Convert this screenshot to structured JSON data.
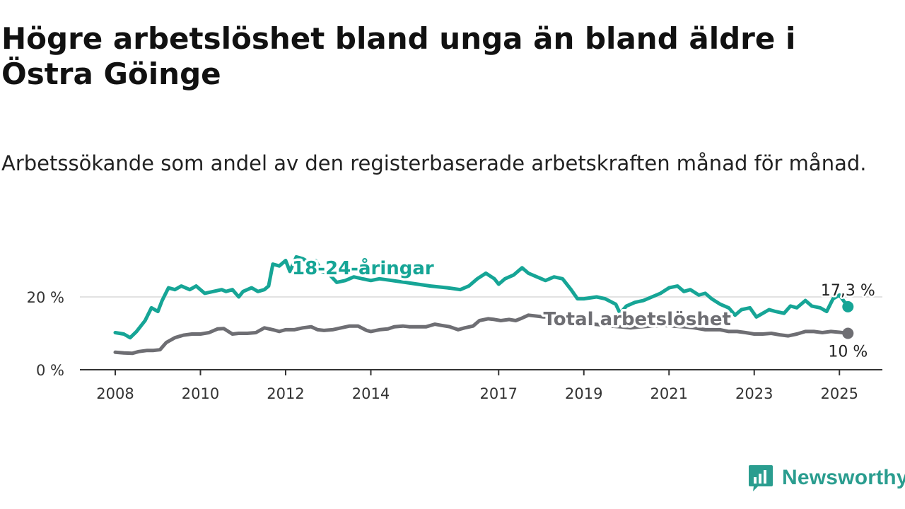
{
  "title": "Högre arbetslöshet bland unga än bland äldre i Östra Göinge",
  "subtitle": "Arbetssökande som andel av den registerbaserade arbetskraften månad för månad.",
  "brand": {
    "name": "Newsworthy",
    "color": "#2a9d8f"
  },
  "colors": {
    "youth": "#16a596",
    "total": "#6e6e73",
    "grid": "#d9d9d9",
    "axis": "#333333"
  },
  "chart_data": {
    "type": "line",
    "x_unit": "year (decimal)",
    "xlim": [
      2008,
      2026
    ],
    "ylim": [
      0,
      30
    ],
    "y_ticks": [
      {
        "value": 0,
        "label": "0 %"
      },
      {
        "value": 20,
        "label": "20 %"
      }
    ],
    "x_ticks": [
      2008,
      2010,
      2012,
      2014,
      2017,
      2019,
      2021,
      2023,
      2025
    ],
    "grid": "horizontal at 20 %",
    "series": [
      {
        "name": "18-24-åringar",
        "color": "#16a596",
        "end_label": "17,3 %",
        "points": [
          [
            2008.0,
            10.2
          ],
          [
            2008.2,
            9.8
          ],
          [
            2008.35,
            8.8
          ],
          [
            2008.5,
            10.5
          ],
          [
            2008.7,
            13.5
          ],
          [
            2008.85,
            17.0
          ],
          [
            2009.0,
            16.0
          ],
          [
            2009.1,
            19.0
          ],
          [
            2009.25,
            22.5
          ],
          [
            2009.4,
            22.0
          ],
          [
            2009.55,
            23.0
          ],
          [
            2009.75,
            22.0
          ],
          [
            2009.9,
            23.0
          ],
          [
            2010.1,
            21.0
          ],
          [
            2010.3,
            21.5
          ],
          [
            2010.5,
            22.0
          ],
          [
            2010.6,
            21.5
          ],
          [
            2010.75,
            22.0
          ],
          [
            2010.9,
            20.0
          ],
          [
            2011.0,
            21.5
          ],
          [
            2011.2,
            22.5
          ],
          [
            2011.35,
            21.5
          ],
          [
            2011.5,
            22.0
          ],
          [
            2011.6,
            23.0
          ],
          [
            2011.7,
            29.0
          ],
          [
            2011.85,
            28.5
          ],
          [
            2012.0,
            30.0
          ],
          [
            2012.1,
            27.0
          ],
          [
            2012.25,
            31.0
          ],
          [
            2012.4,
            30.5
          ],
          [
            2012.55,
            29.5
          ],
          [
            2012.7,
            30.0
          ],
          [
            2012.85,
            27.0
          ],
          [
            2013.0,
            26.5
          ],
          [
            2013.2,
            24.0
          ],
          [
            2013.4,
            24.5
          ],
          [
            2013.6,
            25.5
          ],
          [
            2013.8,
            25.0
          ],
          [
            2014.0,
            24.5
          ],
          [
            2014.2,
            25.0
          ],
          [
            2014.5,
            24.5
          ],
          [
            2014.8,
            24.0
          ],
          [
            2015.1,
            23.5
          ],
          [
            2015.4,
            23.0
          ],
          [
            2015.8,
            22.5
          ],
          [
            2016.1,
            22.0
          ],
          [
            2016.3,
            23.0
          ],
          [
            2016.5,
            25.0
          ],
          [
            2016.7,
            26.5
          ],
          [
            2016.9,
            25.0
          ],
          [
            2017.0,
            23.5
          ],
          [
            2017.15,
            25.0
          ],
          [
            2017.35,
            26.0
          ],
          [
            2017.55,
            28.0
          ],
          [
            2017.7,
            26.5
          ],
          [
            2017.9,
            25.5
          ],
          [
            2018.1,
            24.5
          ],
          [
            2018.3,
            25.5
          ],
          [
            2018.5,
            25.0
          ],
          [
            2018.7,
            22.0
          ],
          [
            2018.85,
            19.5
          ],
          [
            2019.0,
            19.5
          ],
          [
            2019.3,
            20.0
          ],
          [
            2019.5,
            19.5
          ],
          [
            2019.75,
            18.0
          ],
          [
            2019.85,
            15.5
          ],
          [
            2020.0,
            17.5
          ],
          [
            2020.2,
            18.5
          ],
          [
            2020.4,
            19.0
          ],
          [
            2020.6,
            20.0
          ],
          [
            2020.8,
            21.0
          ],
          [
            2021.0,
            22.5
          ],
          [
            2021.2,
            23.0
          ],
          [
            2021.35,
            21.5
          ],
          [
            2021.5,
            22.0
          ],
          [
            2021.7,
            20.5
          ],
          [
            2021.85,
            21.0
          ],
          [
            2022.0,
            19.5
          ],
          [
            2022.2,
            18.0
          ],
          [
            2022.4,
            17.0
          ],
          [
            2022.55,
            15.0
          ],
          [
            2022.7,
            16.5
          ],
          [
            2022.9,
            17.0
          ],
          [
            2023.05,
            14.5
          ],
          [
            2023.2,
            15.5
          ],
          [
            2023.35,
            16.5
          ],
          [
            2023.5,
            16.0
          ],
          [
            2023.7,
            15.5
          ],
          [
            2023.85,
            17.5
          ],
          [
            2024.0,
            17.0
          ],
          [
            2024.2,
            19.0
          ],
          [
            2024.35,
            17.5
          ],
          [
            2024.55,
            17.0
          ],
          [
            2024.7,
            16.0
          ],
          [
            2024.85,
            19.5
          ],
          [
            2025.0,
            20.5
          ],
          [
            2025.2,
            17.3
          ]
        ]
      },
      {
        "name": "Total arbetslöshet",
        "color": "#6e6e73",
        "end_label": "10 %",
        "points": [
          [
            2008.0,
            4.8
          ],
          [
            2008.2,
            4.6
          ],
          [
            2008.4,
            4.5
          ],
          [
            2008.55,
            5.0
          ],
          [
            2008.75,
            5.3
          ],
          [
            2008.9,
            5.3
          ],
          [
            2009.05,
            5.5
          ],
          [
            2009.2,
            7.5
          ],
          [
            2009.4,
            8.8
          ],
          [
            2009.6,
            9.5
          ],
          [
            2009.8,
            9.8
          ],
          [
            2010.0,
            9.8
          ],
          [
            2010.2,
            10.2
          ],
          [
            2010.4,
            11.2
          ],
          [
            2010.55,
            11.3
          ],
          [
            2010.75,
            9.8
          ],
          [
            2010.9,
            10.0
          ],
          [
            2011.1,
            10.0
          ],
          [
            2011.3,
            10.2
          ],
          [
            2011.5,
            11.5
          ],
          [
            2011.7,
            11.0
          ],
          [
            2011.85,
            10.5
          ],
          [
            2012.0,
            11.0
          ],
          [
            2012.2,
            11.0
          ],
          [
            2012.4,
            11.5
          ],
          [
            2012.6,
            11.8
          ],
          [
            2012.75,
            11.0
          ],
          [
            2012.9,
            10.8
          ],
          [
            2013.1,
            11.0
          ],
          [
            2013.3,
            11.5
          ],
          [
            2013.5,
            12.0
          ],
          [
            2013.7,
            12.0
          ],
          [
            2013.9,
            10.8
          ],
          [
            2014.0,
            10.5
          ],
          [
            2014.2,
            11.0
          ],
          [
            2014.4,
            11.2
          ],
          [
            2014.55,
            11.8
          ],
          [
            2014.75,
            12.0
          ],
          [
            2014.9,
            11.8
          ],
          [
            2015.1,
            11.8
          ],
          [
            2015.3,
            11.8
          ],
          [
            2015.5,
            12.5
          ],
          [
            2015.65,
            12.2
          ],
          [
            2015.85,
            11.8
          ],
          [
            2016.05,
            11.0
          ],
          [
            2016.2,
            11.5
          ],
          [
            2016.4,
            12.0
          ],
          [
            2016.55,
            13.5
          ],
          [
            2016.75,
            14.0
          ],
          [
            2016.9,
            13.8
          ],
          [
            2017.05,
            13.5
          ],
          [
            2017.25,
            13.8
          ],
          [
            2017.4,
            13.5
          ],
          [
            2017.55,
            14.2
          ],
          [
            2017.7,
            15.0
          ],
          [
            2017.85,
            14.8
          ],
          [
            2018.05,
            14.5
          ],
          [
            2018.25,
            14.5
          ],
          [
            2018.45,
            14.5
          ],
          [
            2018.65,
            13.8
          ],
          [
            2018.85,
            13.0
          ],
          [
            2019.05,
            13.0
          ],
          [
            2019.25,
            12.5
          ],
          [
            2019.45,
            12.3
          ],
          [
            2019.65,
            12.0
          ],
          [
            2019.85,
            11.8
          ],
          [
            2020.1,
            11.5
          ],
          [
            2020.35,
            11.8
          ],
          [
            2020.6,
            12.0
          ],
          [
            2020.85,
            12.2
          ],
          [
            2021.1,
            12.0
          ],
          [
            2021.35,
            11.8
          ],
          [
            2021.6,
            11.5
          ],
          [
            2021.85,
            11.0
          ],
          [
            2022.0,
            11.0
          ],
          [
            2022.2,
            11.0
          ],
          [
            2022.4,
            10.5
          ],
          [
            2022.6,
            10.5
          ],
          [
            2022.8,
            10.2
          ],
          [
            2023.0,
            9.8
          ],
          [
            2023.2,
            9.8
          ],
          [
            2023.4,
            10.0
          ],
          [
            2023.6,
            9.6
          ],
          [
            2023.8,
            9.3
          ],
          [
            2024.0,
            9.8
          ],
          [
            2024.2,
            10.5
          ],
          [
            2024.4,
            10.5
          ],
          [
            2024.6,
            10.2
          ],
          [
            2024.8,
            10.5
          ],
          [
            2025.0,
            10.3
          ],
          [
            2025.2,
            10.0
          ]
        ]
      }
    ]
  }
}
